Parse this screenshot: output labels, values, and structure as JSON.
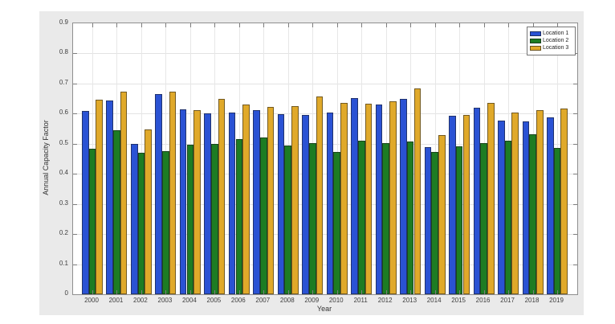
{
  "figure": {
    "background_color": "#eaeaea",
    "plot_background_color": "#ffffff",
    "axis_color": "#8f8f8f",
    "grid_color": "#e3e3e3"
  },
  "chart_data": {
    "type": "bar",
    "title": "",
    "xlabel": "Year",
    "ylabel": "Annual Capacity Factor",
    "categories": [
      "2000",
      "2001",
      "2002",
      "2003",
      "2004",
      "2005",
      "2006",
      "2007",
      "2008",
      "2009",
      "2010",
      "2011",
      "2012",
      "2013",
      "2014",
      "2015",
      "2016",
      "2017",
      "2018",
      "2019"
    ],
    "series": [
      {
        "name": "Location 1",
        "color": "#2a52d4",
        "values": [
          0.61,
          0.645,
          0.499,
          0.665,
          0.614,
          0.601,
          0.603,
          0.613,
          0.599,
          0.596,
          0.603,
          0.652,
          0.63,
          0.649,
          0.49,
          0.592,
          0.621,
          0.577,
          0.574,
          0.588
        ]
      },
      {
        "name": "Location 2",
        "color": "#1d7c23",
        "values": [
          0.483,
          0.546,
          0.469,
          0.475,
          0.497,
          0.499,
          0.516,
          0.522,
          0.494,
          0.501,
          0.474,
          0.51,
          0.503,
          0.507,
          0.474,
          0.491,
          0.503,
          0.509,
          0.532,
          0.485
        ]
      },
      {
        "name": "Location 3",
        "color": "#e0a92a",
        "values": [
          0.647,
          0.674,
          0.548,
          0.672,
          0.612,
          0.648,
          0.63,
          0.622,
          0.625,
          0.657,
          0.635,
          0.632,
          0.641,
          0.683,
          0.528,
          0.595,
          0.637,
          0.605,
          0.612,
          0.616
        ]
      }
    ],
    "ylim": [
      0,
      0.9
    ],
    "yticks": [
      0,
      0.1,
      0.2,
      0.3,
      0.4,
      0.5,
      0.6,
      0.7,
      0.8,
      0.9
    ],
    "grid": true,
    "legend_position": "top-right"
  }
}
